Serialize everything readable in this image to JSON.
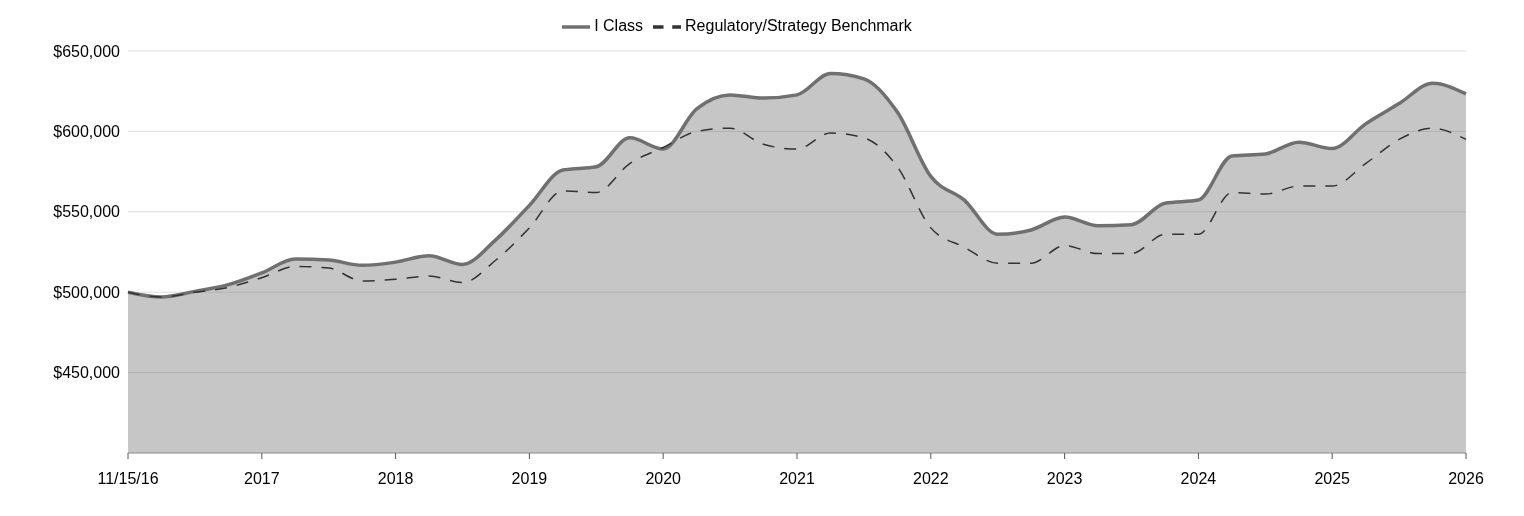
{
  "chart_data": {
    "type": "line",
    "categories": [
      "11/15/16",
      null,
      null,
      null,
      "2017",
      null,
      null,
      null,
      "2018",
      null,
      null,
      null,
      "2019",
      null,
      null,
      null,
      "2020",
      null,
      null,
      null,
      "2021",
      null,
      null,
      null,
      "2022",
      null,
      null,
      null,
      "2023",
      null,
      null,
      null,
      "2024",
      null,
      null,
      null,
      "2025",
      null,
      null,
      null,
      "2026"
    ],
    "series": [
      {
        "name": "I Class",
        "type": "area",
        "color": "#707070",
        "values": [
          500000,
          497000,
          500500,
          504700,
          512000,
          520700,
          520000,
          516700,
          518700,
          522700,
          517300,
          532700,
          554000,
          576000,
          578000,
          596000,
          589000,
          614000,
          622700,
          620700,
          622700,
          636000,
          632700,
          612000,
          572000,
          557300,
          536000,
          538700,
          546700,
          541300,
          542000,
          555300,
          557300,
          584700,
          586000,
          593300,
          589300,
          604700,
          617300,
          630000,
          623300
        ]
      },
      {
        "name": "Regulatory/Strategy Benchmark",
        "color": "#333333",
        "line_style": "dashed",
        "values": [
          500000,
          497000,
          500000,
          503000,
          509000,
          516000,
          515000,
          507000,
          508000,
          510000,
          506000,
          520000,
          540000,
          563000,
          562000,
          580000,
          590000,
          600000,
          602000,
          592000,
          589000,
          599000,
          596000,
          578000,
          540000,
          528000,
          518000,
          518000,
          529000,
          524000,
          524000,
          536000,
          536000,
          562000,
          561000,
          566000,
          566000,
          580000,
          595000,
          602000,
          595000
        ]
      }
    ],
    "ylim": [
      400000,
      650000
    ],
    "yticks": [
      {
        "value": 400000,
        "label": null
      },
      {
        "value": 450000,
        "label": "$450,000"
      },
      {
        "value": 500000,
        "label": "$500,000"
      },
      {
        "value": 550000,
        "label": "$550,000"
      },
      {
        "value": 600000,
        "label": "$600,000"
      },
      {
        "value": 650000,
        "label": "$650,000"
      }
    ],
    "grid": "y",
    "legend": "top",
    "marker": "none"
  }
}
